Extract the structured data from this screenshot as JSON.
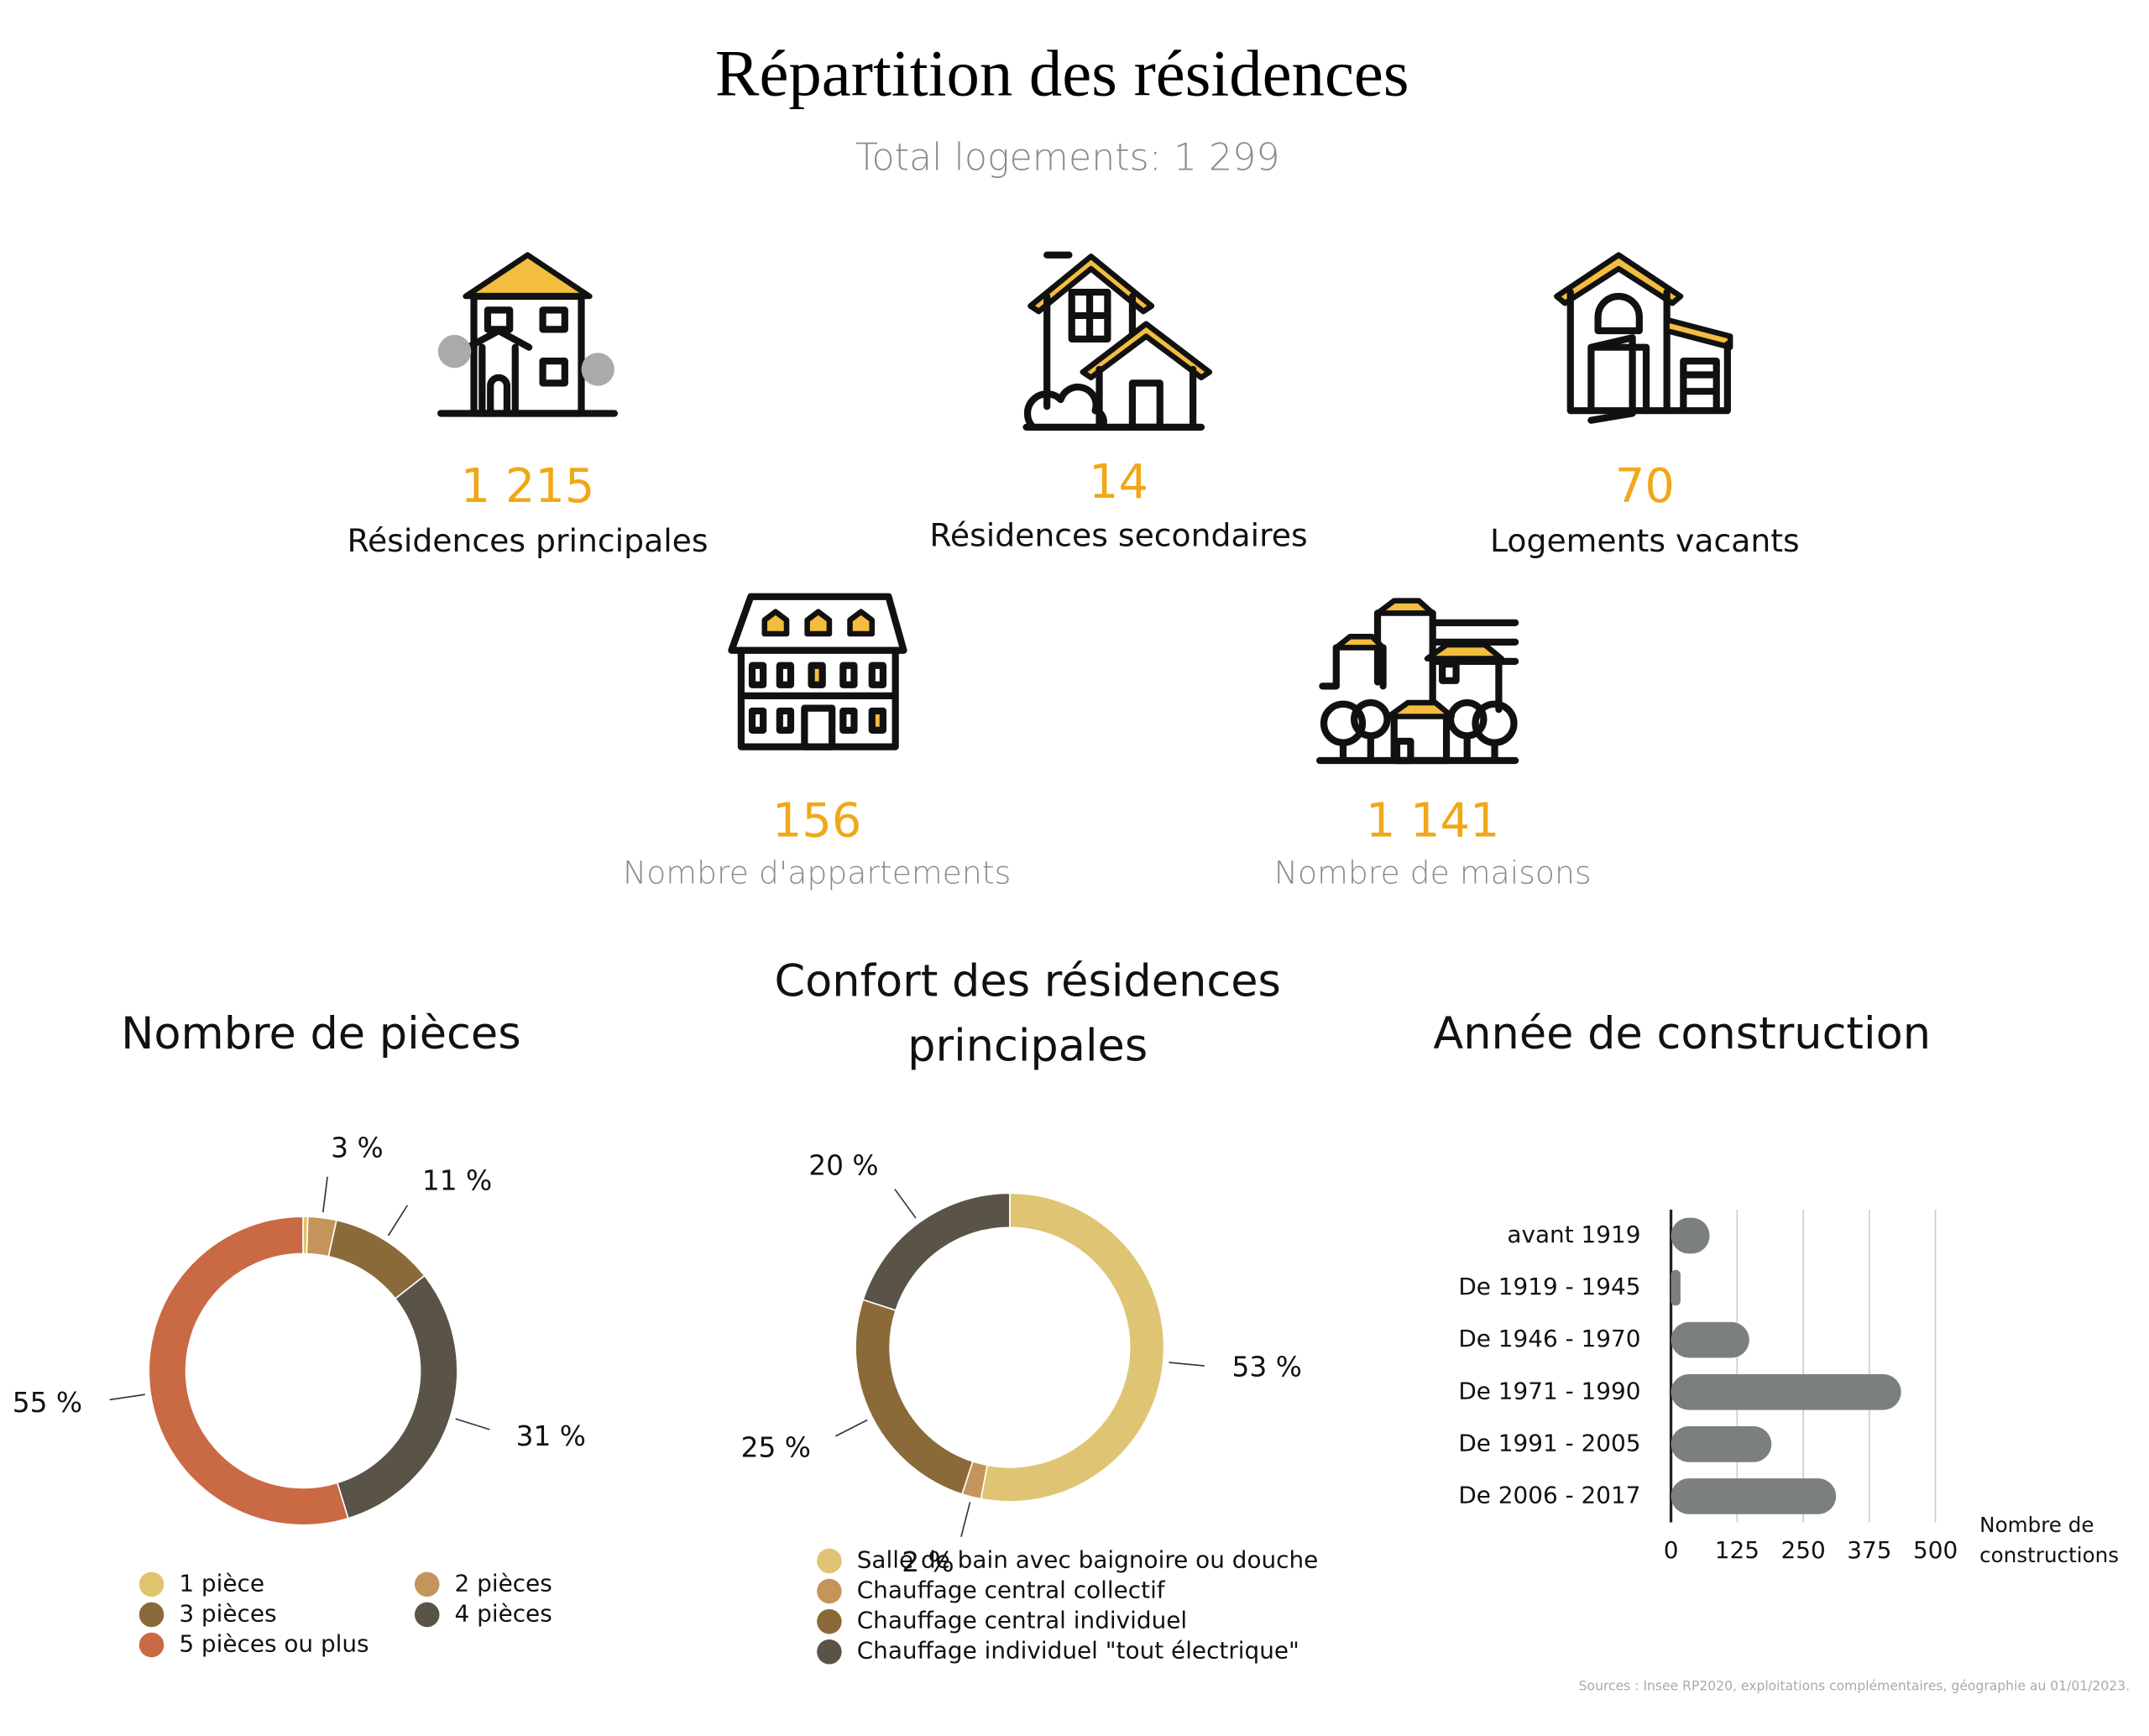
{
  "header": {
    "title": "Répartition des résidences",
    "subtitle": "Total logements: 1 299"
  },
  "stats": [
    {
      "value": "1 215",
      "label": "Résidences principales"
    },
    {
      "value": "14",
      "label": "Résidences secondaires"
    },
    {
      "value": "70",
      "label": "Logements vacants"
    },
    {
      "value": "156",
      "label": "Nombre d'appartements"
    },
    {
      "value": "1 141",
      "label": "Nombre de maisons"
    }
  ],
  "chart_data": [
    {
      "type": "pie",
      "donut": true,
      "title": "Nombre de pièces",
      "categories": [
        "1 pièce",
        "2 pièces",
        "3 pièces",
        "4 pièces",
        "5 pièces ou plus"
      ],
      "values": [
        0.5,
        3,
        11,
        31,
        55
      ],
      "value_labels": [
        null,
        "3 %",
        "11 %",
        "31 %",
        "55 %"
      ],
      "colors": [
        "#e0c46c",
        "#c4955a",
        "#8b6a3a",
        "#5a5448",
        "#c96a45"
      ]
    },
    {
      "type": "pie",
      "donut": true,
      "title": "Confort des résidences principales",
      "categories": [
        "Salle de bain avec baignoire ou douche",
        "Chauffage central collectif",
        "Chauffage central individuel",
        "Chauffage individuel \"tout électrique\""
      ],
      "values": [
        53,
        2,
        25,
        20
      ],
      "value_labels": [
        "53 %",
        "2 %",
        "25 %",
        "20 %"
      ],
      "colors": [
        "#dfc573",
        "#c4955a",
        "#8b6a3a",
        "#5a5448"
      ]
    },
    {
      "type": "hbar",
      "title": "Année de construction",
      "x_label": "Nombre de constructions",
      "categories": [
        "avant 1919",
        "De 1919 - 1945",
        "De 1946 - 1970",
        "De 1971 - 1990",
        "De 1991 - 2005",
        "De 2006 - 2017"
      ],
      "values": [
        73,
        18,
        148,
        435,
        190,
        312
      ],
      "color": "#7b807d",
      "xlim": [
        0,
        500
      ],
      "xticks": [
        0,
        125,
        250,
        375,
        500
      ],
      "grid": true
    }
  ],
  "source": "Sources : Insee RP2020, exploitations complémentaires, géographie au 01/01/2023."
}
